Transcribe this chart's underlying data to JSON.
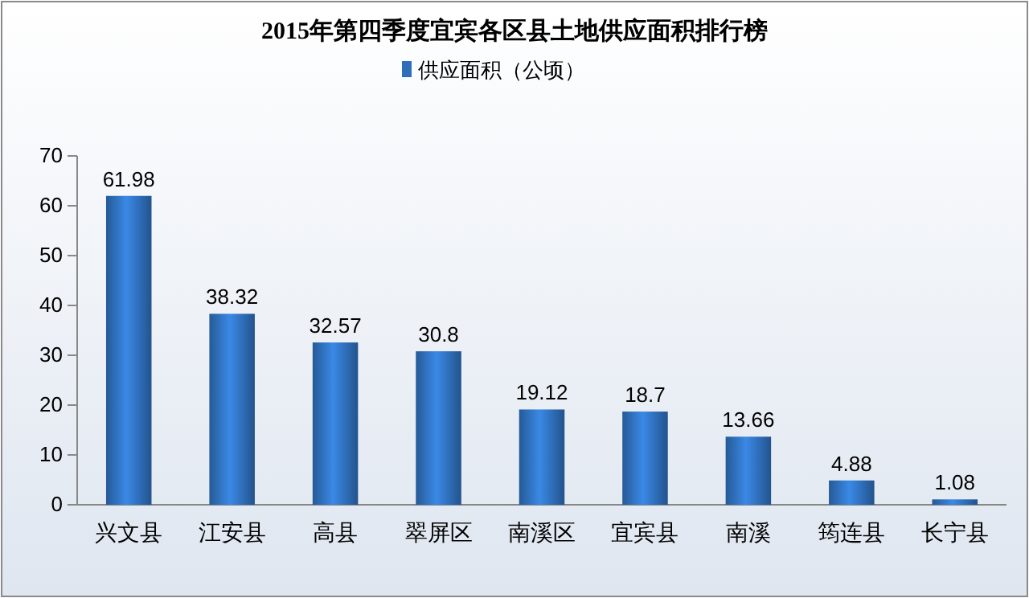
{
  "chart_data": {
    "type": "bar",
    "title": "2015年第四季度宜宾各区县土地供应面积排行榜",
    "categories": [
      "兴文县",
      "江安县",
      "高县",
      "翠屏区",
      "南溪区",
      "宜宾县",
      "南溪",
      "筠连县",
      "长宁县"
    ],
    "series": [
      {
        "name": "供应面积（公顷）",
        "color": "#2f6fba",
        "values": [
          61.98,
          38.32,
          32.57,
          30.8,
          19.12,
          18.7,
          13.66,
          4.88,
          1.08
        ]
      }
    ],
    "ylim": [
      0,
      70
    ],
    "yticks": [
      0,
      10,
      20,
      30,
      40,
      50,
      60,
      70
    ],
    "grid": false,
    "legend": "top",
    "data_labels": true
  }
}
